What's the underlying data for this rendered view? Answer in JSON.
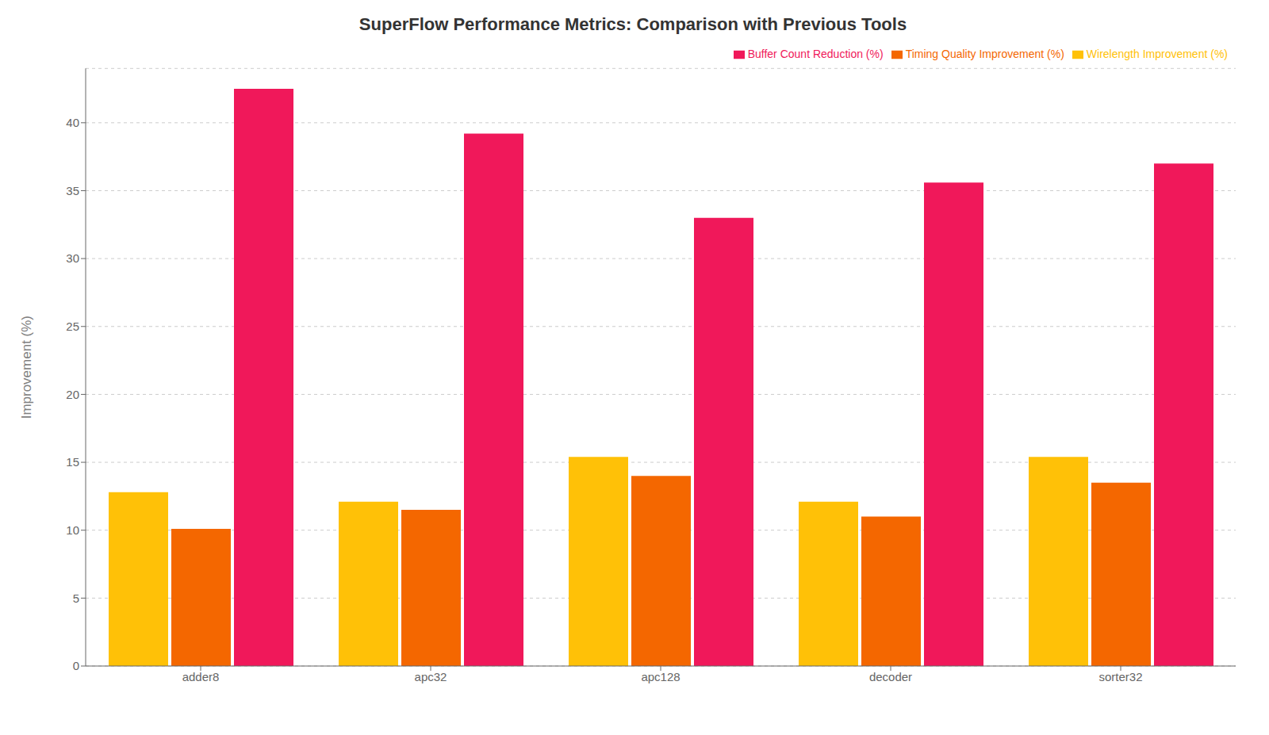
{
  "chart_data": {
    "type": "bar",
    "title": "SuperFlow Performance Metrics: Comparison with Previous Tools",
    "categories": [
      "adder8",
      "apc32",
      "apc128",
      "decoder",
      "sorter32"
    ],
    "series": [
      {
        "name": "Wirelength Improvement (%)",
        "color": "#FFC107",
        "values": [
          12.8,
          12.1,
          15.4,
          12.1,
          15.4
        ]
      },
      {
        "name": "Timing Quality Improvement (%)",
        "color": "#F46700",
        "values": [
          10.1,
          11.5,
          14.0,
          11.0,
          13.5
        ]
      },
      {
        "name": "Buffer Count Reduction (%)",
        "color": "#F0185A",
        "values": [
          42.5,
          39.2,
          33.0,
          35.6,
          37.0
        ]
      }
    ],
    "ylabel": "Improvement (%)",
    "ylim": [
      0,
      44
    ],
    "yticks": [
      0,
      5,
      10,
      15,
      20,
      25,
      30,
      35,
      40
    ],
    "grid": true,
    "legend": "upper right"
  }
}
